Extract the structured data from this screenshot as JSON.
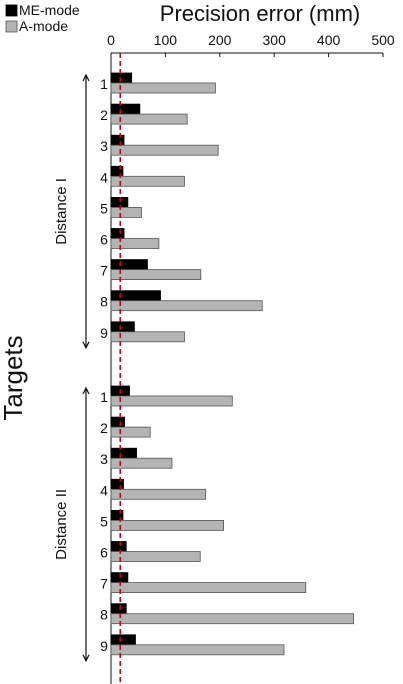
{
  "chart_data": {
    "type": "bar",
    "orientation": "horizontal",
    "xlabel": "Precision error (mm)",
    "ylabel": "Targets",
    "xlim": [
      0,
      500
    ],
    "xticks": [
      "0",
      "100",
      "200",
      "300",
      "400",
      "500"
    ],
    "legend": {
      "placement": "top-left",
      "entries": [
        "ME-mode",
        "A-mode"
      ]
    },
    "colors": {
      "ME-mode": "#000000",
      "A-mode": "#b4b4b4",
      "reference_line": "#cc0000"
    },
    "reference_line": {
      "x": 17,
      "style": "dashed"
    },
    "groups": [
      {
        "name": "Distance I",
        "categories": [
          "1",
          "2",
          "3",
          "4",
          "5",
          "6",
          "7",
          "8",
          "9"
        ],
        "series": [
          {
            "name": "ME-mode",
            "values": [
              38,
              53,
              24,
              22,
              31,
              24,
              67,
              91,
              43
            ]
          },
          {
            "name": "A-mode",
            "values": [
              192,
              140,
              197,
              135,
              56,
              88,
              165,
              278,
              135
            ]
          }
        ]
      },
      {
        "name": "Distance II",
        "categories": [
          "1",
          "2",
          "3",
          "4",
          "5",
          "6",
          "7",
          "8",
          "9"
        ],
        "series": [
          {
            "name": "ME-mode",
            "values": [
              34,
              25,
              47,
              23,
              22,
              28,
              31,
              28,
              45
            ]
          },
          {
            "name": "A-mode",
            "values": [
              223,
              72,
              112,
              174,
              207,
              164,
              358,
              446,
              318
            ]
          }
        ]
      }
    ]
  }
}
